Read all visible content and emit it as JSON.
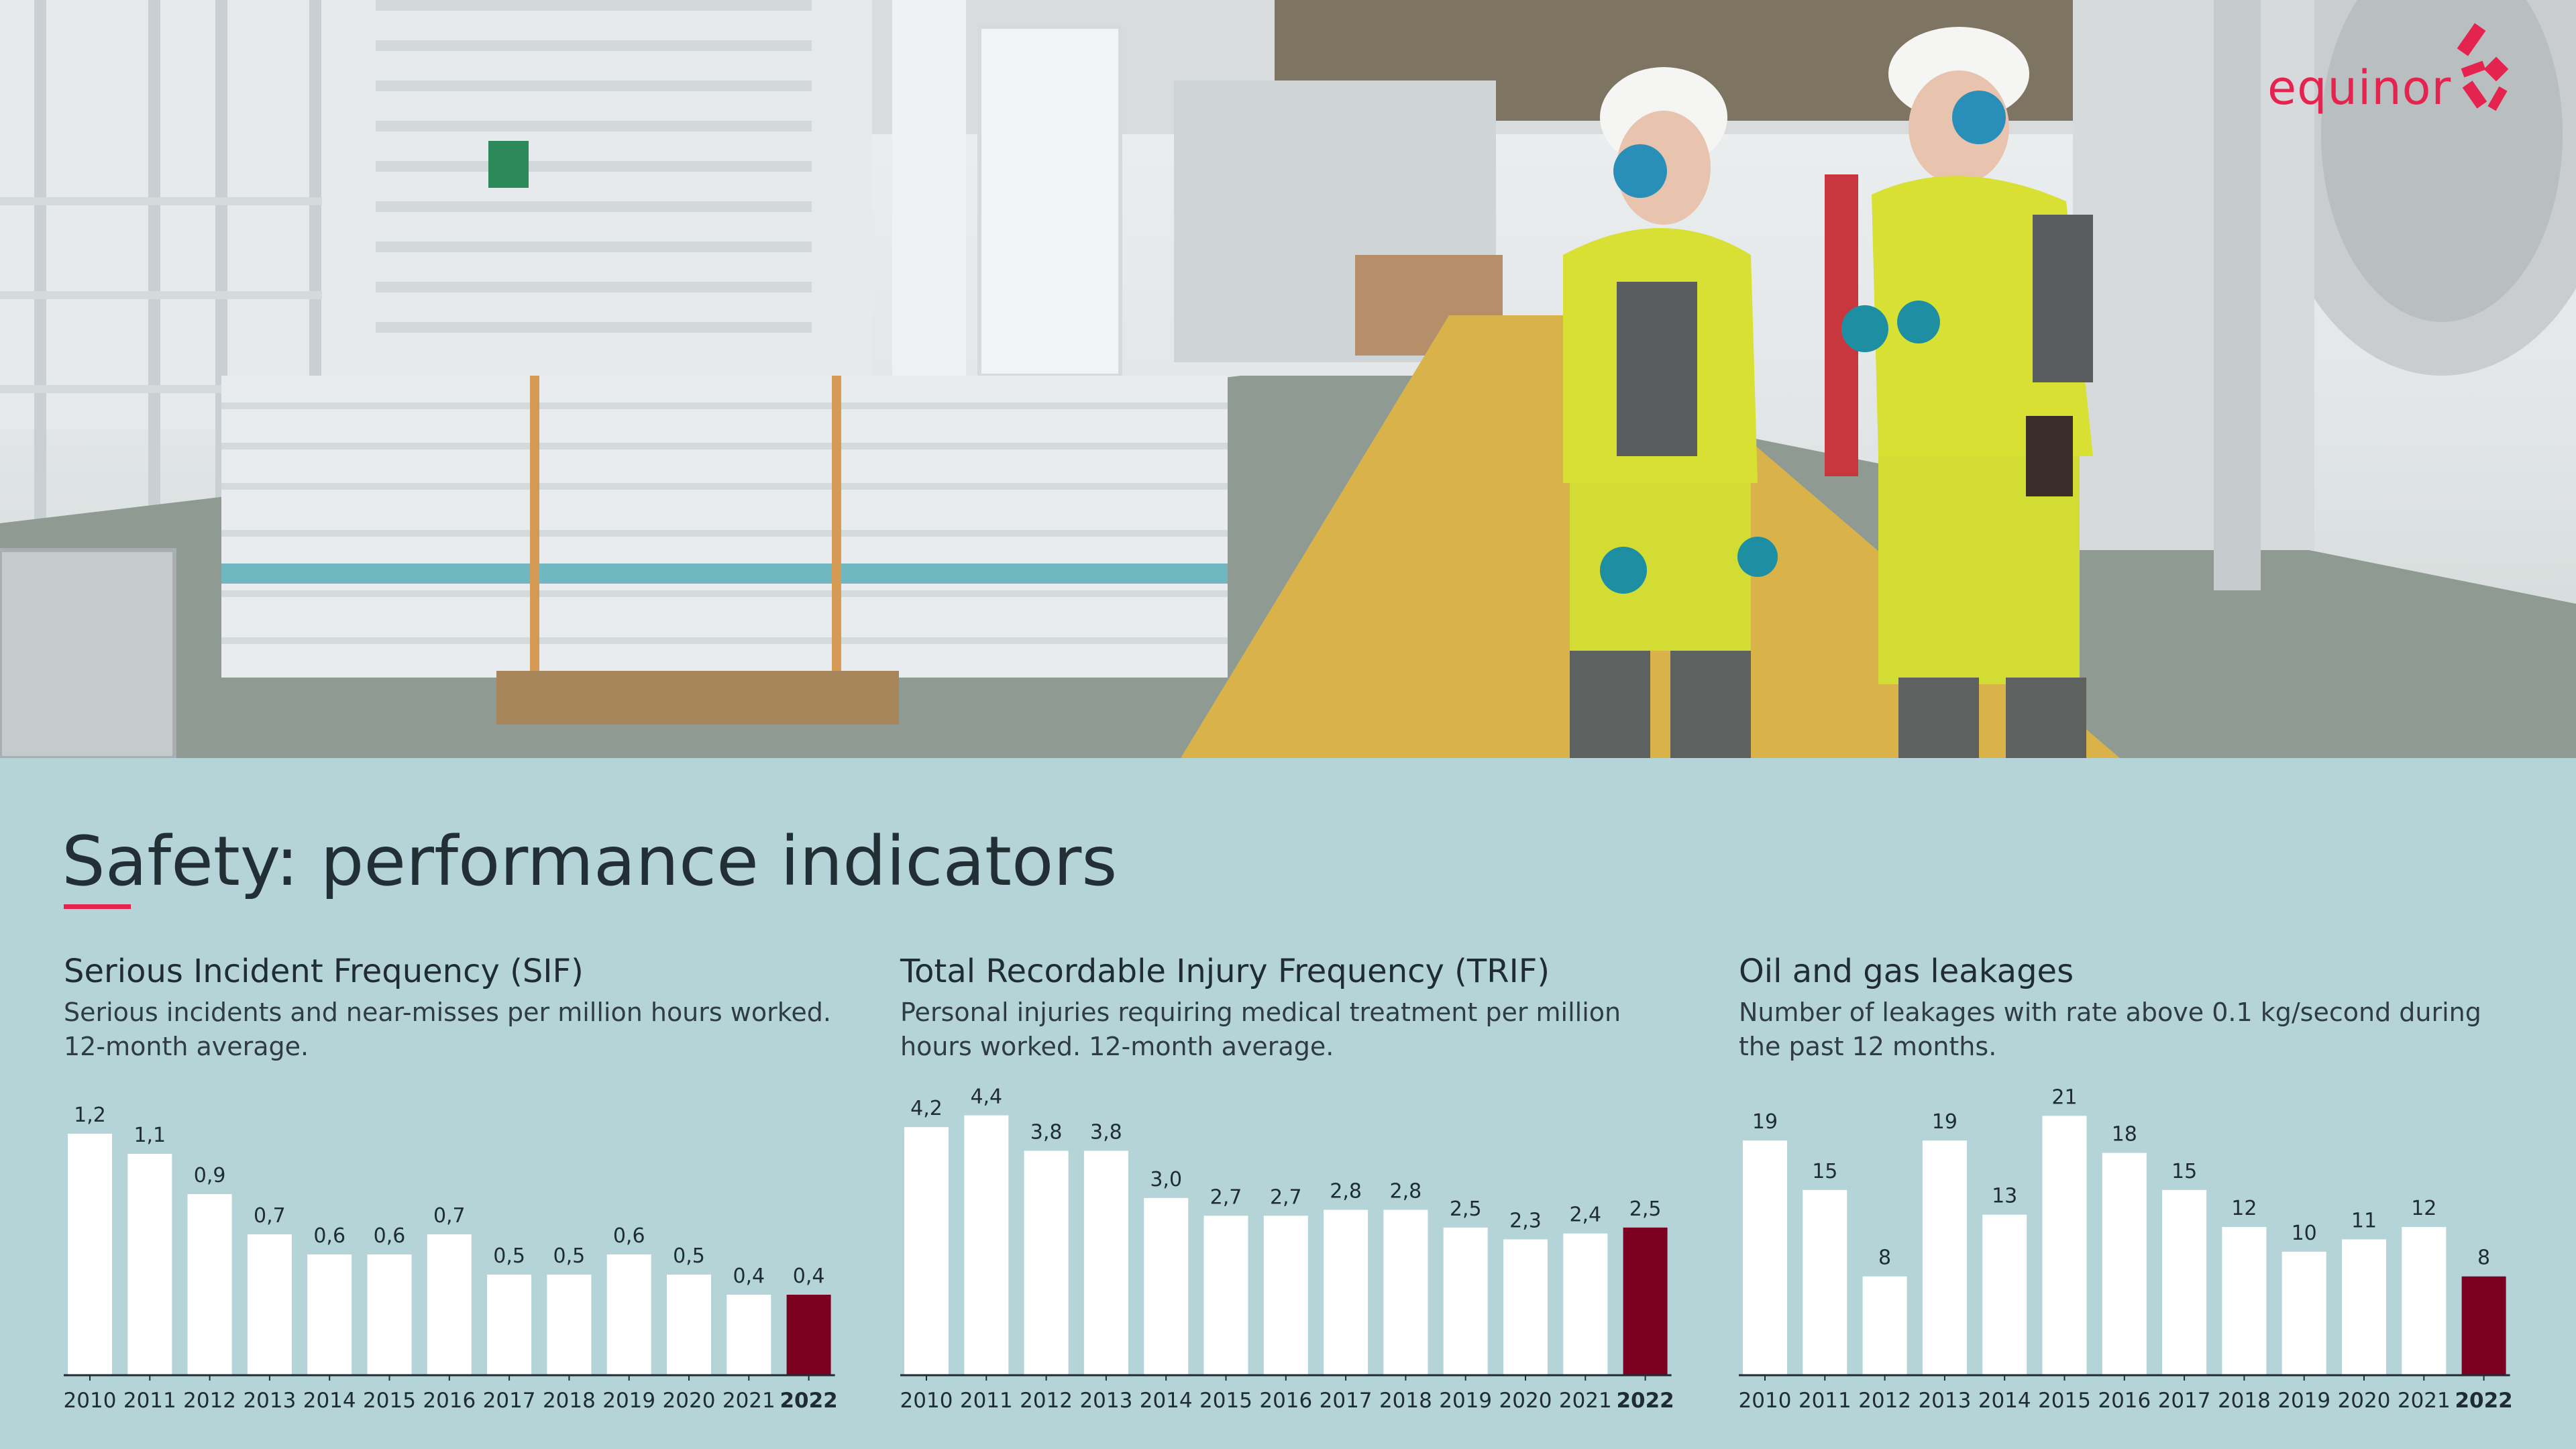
{
  "brand": {
    "logo_text": "equinor",
    "accent": "#e4234f"
  },
  "page": {
    "title": "Safety: performance indicators",
    "background": "#b5d4d8"
  },
  "colors": {
    "bar": "#ffffff",
    "highlight_bar": "#7c0020",
    "axis": "#1f2d33"
  },
  "chart_data": [
    {
      "type": "bar",
      "title": "Serious Incident Frequency (SIF)",
      "subtitle": "Serious incidents and near-misses per million hours worked. 12-month average.",
      "categories": [
        "2010",
        "2011",
        "2012",
        "2013",
        "2014",
        "2015",
        "2016",
        "2017",
        "2018",
        "2019",
        "2020",
        "2021",
        "2022"
      ],
      "values": [
        1.2,
        1.1,
        0.9,
        0.7,
        0.6,
        0.6,
        0.7,
        0.5,
        0.5,
        0.6,
        0.5,
        0.4,
        0.4
      ],
      "value_labels": [
        "1,2",
        "1,1",
        "0,9",
        "0,7",
        "0,6",
        "0,6",
        "0,7",
        "0,5",
        "0,5",
        "0,6",
        "0,5",
        "0,4",
        "0,4"
      ],
      "highlight": "2022",
      "ylim": [
        0,
        1.35
      ],
      "grid": false
    },
    {
      "type": "bar",
      "title": "Total Recordable Injury Frequency (TRIF)",
      "subtitle": "Personal injuries requiring medical treatment per million hours worked. 12-month average.",
      "categories": [
        "2010",
        "2011",
        "2012",
        "2013",
        "2014",
        "2015",
        "2016",
        "2017",
        "2018",
        "2019",
        "2020",
        "2021",
        "2022"
      ],
      "values": [
        4.2,
        4.4,
        3.8,
        3.8,
        3.0,
        2.7,
        2.7,
        2.8,
        2.8,
        2.5,
        2.3,
        2.4,
        2.5
      ],
      "value_labels": [
        "4,2",
        "4,4",
        "3,8",
        "3,8",
        "3,0",
        "2,7",
        "2,7",
        "2,8",
        "2,8",
        "2,5",
        "2,3",
        "2,4",
        "2,5"
      ],
      "highlight": "2022",
      "ylim": [
        0,
        4.6
      ],
      "grid": false
    },
    {
      "type": "bar",
      "title": "Oil and gas leakages",
      "subtitle": "Number of leakages with rate above 0.1 kg/second during the past 12 months.",
      "categories": [
        "2010",
        "2011",
        "2012",
        "2013",
        "2014",
        "2015",
        "2016",
        "2017",
        "2018",
        "2019",
        "2020",
        "2021",
        "2022"
      ],
      "values": [
        19,
        15,
        8,
        19,
        13,
        21,
        18,
        15,
        12,
        10,
        11,
        12,
        8
      ],
      "value_labels": [
        "19",
        "15",
        "8",
        "19",
        "13",
        "21",
        "18",
        "15",
        "12",
        "10",
        "11",
        "12",
        "8"
      ],
      "highlight": "2022",
      "ylim": [
        0,
        22
      ],
      "grid": false
    }
  ]
}
